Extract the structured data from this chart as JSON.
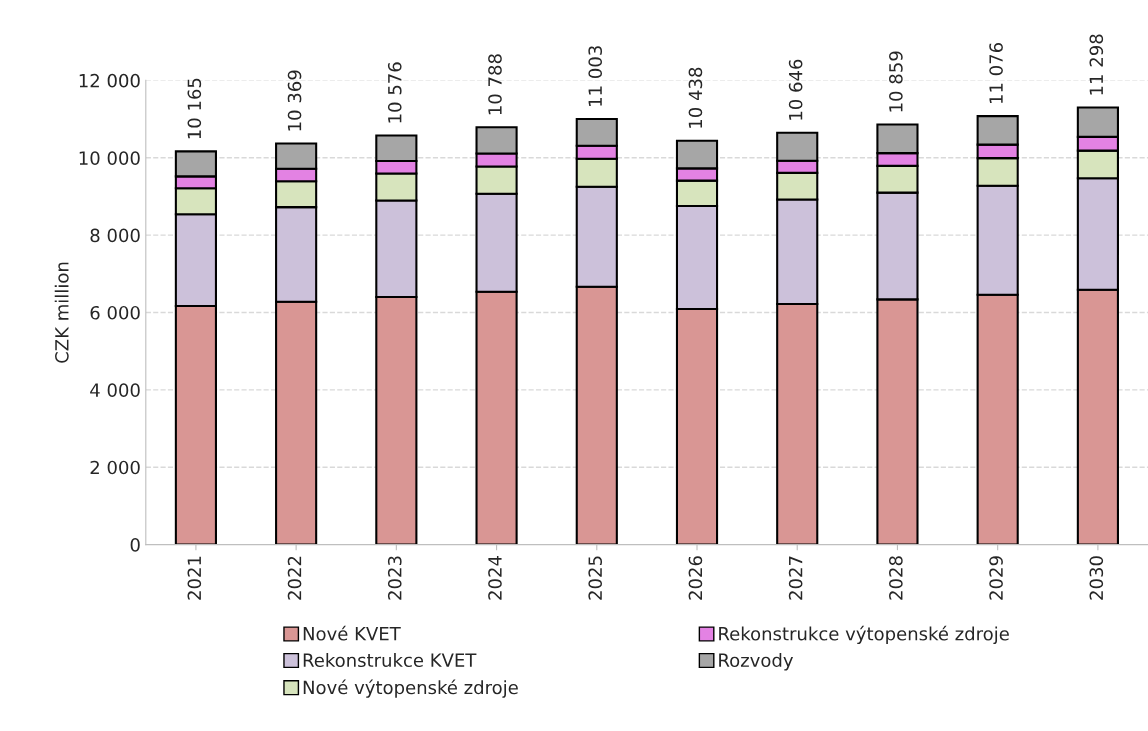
{
  "chart_data": {
    "type": "bar",
    "stacked": true,
    "ylabel": "CZK million",
    "categories": [
      "2021",
      "2022",
      "2023",
      "2024",
      "2025",
      "2026",
      "2027",
      "2028",
      "2029",
      "2030"
    ],
    "series": [
      {
        "name": "Nové KVET",
        "color": "#d99694",
        "values": [
          6170,
          6280,
          6400,
          6535,
          6665,
          6090,
          6220,
          6340,
          6460,
          6590
        ]
      },
      {
        "name": "Rekonstrukce KVET",
        "color": "#ccc1da",
        "values": [
          2370,
          2445,
          2495,
          2535,
          2585,
          2665,
          2700,
          2760,
          2815,
          2880
        ]
      },
      {
        "name": "Nové výtopenské zdroje",
        "color": "#d7e4bd",
        "values": [
          670,
          670,
          700,
          705,
          725,
          655,
          690,
          690,
          715,
          715
        ]
      },
      {
        "name": "Rekonstrukce výtopenské zdroje",
        "color": "#e382e3",
        "values": [
          310,
          320,
          320,
          335,
          335,
          315,
          315,
          330,
          350,
          355
        ]
      },
      {
        "name": "Rozvody",
        "color": "#a6a6a6",
        "values": [
          645,
          654,
          661,
          678,
          693,
          713,
          721,
          739,
          736,
          758
        ]
      }
    ],
    "totals": [
      "10 165",
      "10 369",
      "10 576",
      "10 788",
      "11 003",
      "10 438",
      "10 646",
      "10 859",
      "11 076",
      "11 298"
    ],
    "ylim": [
      0,
      12000
    ],
    "yticks": [
      0,
      {
        "value": 2000,
        "label": "2 000"
      },
      {
        "value": 4000,
        "label": "4 000"
      },
      {
        "value": 6000,
        "label": "6 000"
      },
      {
        "value": 8000,
        "label": "8 000"
      },
      {
        "value": 10000,
        "label": "10 000"
      },
      {
        "value": 12000,
        "label": "12 000"
      }
    ],
    "grid": "y",
    "legend": "bottom"
  }
}
